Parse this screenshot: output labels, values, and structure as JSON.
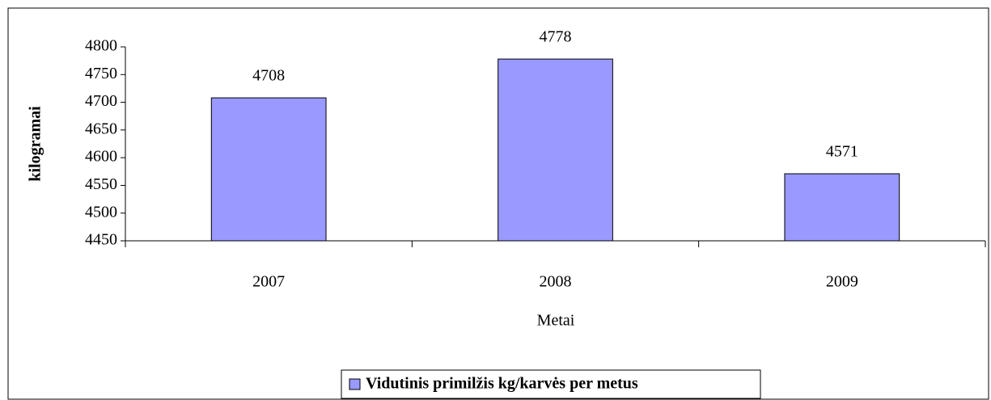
{
  "chart_data": {
    "type": "bar",
    "x_label": "Metai",
    "y_label": "kilogramai",
    "categories": [
      "2007",
      "2008",
      "2009"
    ],
    "series": [
      {
        "name": "Vidutinis primilžis kg/karvės per metus",
        "color": "#9999ff",
        "values": [
          4708,
          4778,
          4571
        ]
      }
    ],
    "ylim": [
      4450,
      4800
    ],
    "yticks": [
      4450,
      4500,
      4550,
      4600,
      4650,
      4700,
      4750,
      4800
    ],
    "legend": "bottom"
  }
}
